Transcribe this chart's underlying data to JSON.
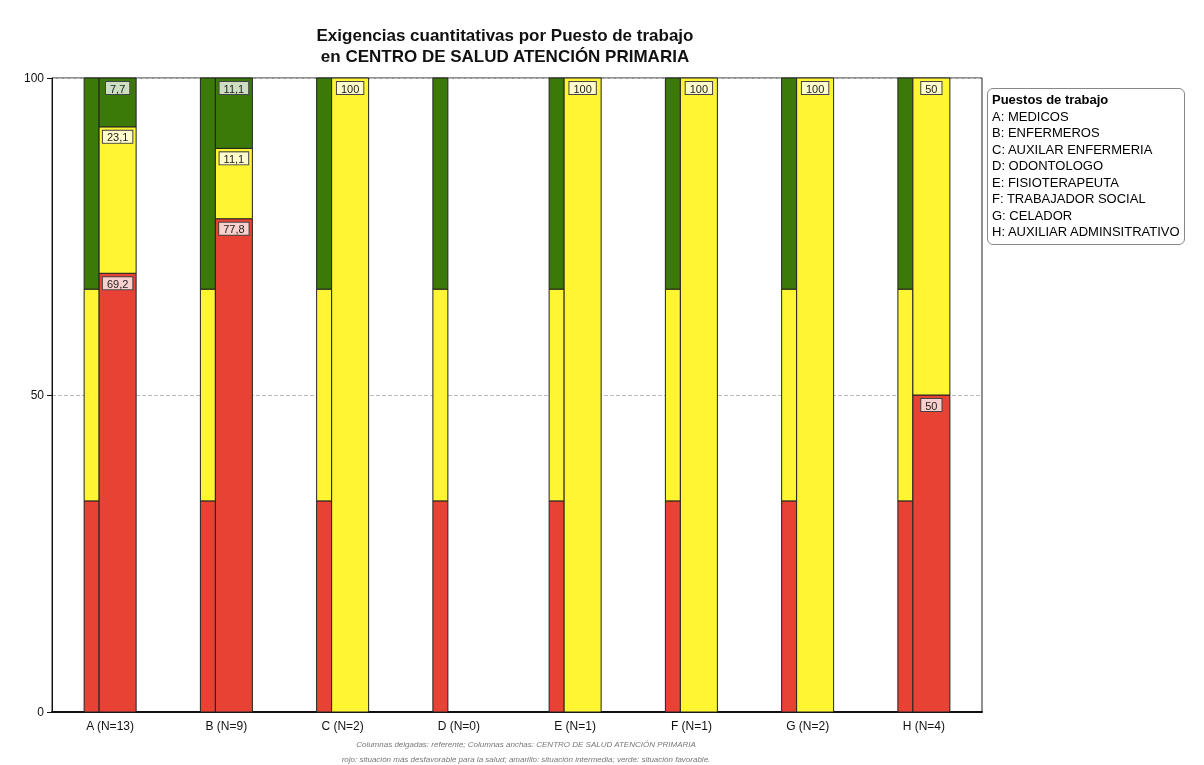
{
  "chart_data": {
    "type": "bar",
    "title": "Exigencias cuantitativas por Puesto de trabajo\nen CENTRO DE SALUD ATENCIÓN PRIMARIA",
    "categories": [
      "A (N=13)",
      "B (N=9)",
      "C (N=2)",
      "D (N=0)",
      "E (N=1)",
      "F (N=1)",
      "G (N=2)",
      "H (N=4)"
    ],
    "ylim": [
      0,
      100
    ],
    "yticks": [
      0,
      50,
      100
    ],
    "grid": "y",
    "series": [
      {
        "color": "#e84235",
        "base": [
          0,
          0,
          0,
          0,
          0,
          0,
          0,
          0
        ],
        "values": [
          33.3,
          33.3,
          33.3,
          33.3,
          33.3,
          33.3,
          33.3,
          33.3
        ]
      },
      {
        "color": "#fff533",
        "base": [
          33.3,
          33.3,
          33.3,
          33.3,
          33.3,
          33.3,
          33.3,
          33.3
        ],
        "values": [
          33.4,
          33.4,
          33.4,
          33.4,
          33.4,
          33.4,
          33.4,
          33.4
        ]
      },
      {
        "color": "#3b7a08",
        "base": [
          66.7,
          66.7,
          66.7,
          66.7,
          66.7,
          66.7,
          66.7,
          66.7
        ],
        "values": [
          33.3,
          33.3,
          33.3,
          33.3,
          33.3,
          33.3,
          33.3,
          33.3
        ]
      },
      {
        "color": "#e84235",
        "base": [
          0,
          0,
          null,
          null,
          null,
          null,
          null,
          0
        ],
        "values": [
          69.2,
          77.8,
          0,
          null,
          0,
          0,
          0,
          50
        ],
        "value_labels": [
          "69,2",
          "77,8",
          null,
          null,
          null,
          null,
          null,
          "50"
        ]
      },
      {
        "color": "#fff533",
        "base": [
          69.2,
          77.8,
          0,
          null,
          0,
          0,
          0,
          50
        ],
        "values": [
          23.1,
          11.1,
          100,
          null,
          100,
          100,
          100,
          50
        ],
        "value_labels": [
          "23,1",
          "11,1",
          "100",
          null,
          "100",
          "100",
          "100",
          "50"
        ]
      },
      {
        "color": "#3b7a08",
        "base": [
          92.3,
          88.9,
          null,
          null,
          null,
          null,
          null,
          null
        ],
        "values": [
          7.7,
          11.1,
          0,
          null,
          0,
          0,
          0,
          0
        ],
        "value_labels": [
          "7,7",
          "11,1",
          null,
          null,
          null,
          null,
          null,
          null
        ]
      }
    ],
    "annotations": [
      "Puestos de trabajo",
      "A: MEDICOS",
      "B: ENFERMEROS",
      "C: AUXILAR ENFERMERIA",
      "D: ODONTOLOGO",
      "E: FISIOTERAPEUTA",
      "F: TRABAJADOR SOCIAL",
      "G: CELADOR",
      "H: AUXILIAR ADMINSITRATIVO",
      "Columnas delgadas: referente; Columnas anchas: CENTRO DE SALUD ATENCIÓN PRIMARIA",
      "rojo: situación más desfavorable para la salud; amarillo: situación intermedia; verde: situación favorable."
    ]
  }
}
